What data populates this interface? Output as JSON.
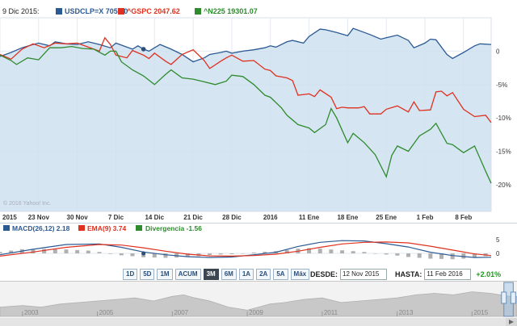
{
  "legend": {
    "date": "9 Dic 2015:",
    "series": [
      {
        "label": "USDCLP=X 705.60",
        "color": "#2b5a93"
      },
      {
        "label": "^GSPC 2047.62",
        "color": "#e0301e"
      },
      {
        "label": "^N225 19301.07",
        "color": "#2e8b2e"
      }
    ]
  },
  "watermark": "© 2016 Yahoo! Inc.",
  "chart_data": [
    {
      "type": "line",
      "title": "",
      "y_ticks": [
        "0",
        "-5%",
        "-10%",
        "-15%",
        "-20%"
      ],
      "ylim": [
        -24,
        5
      ],
      "x_ticks": [
        "2015",
        "23 Nov",
        "30 Nov",
        "7 Dic",
        "14 Dic",
        "21 Dic",
        "28 Dic",
        "2016",
        "11 Ene",
        "18 Ene",
        "25 Ene",
        "1 Feb",
        "8 Feb"
      ],
      "x_tick_pos": [
        0,
        7,
        14,
        21,
        28,
        35,
        42,
        49,
        56,
        63,
        70,
        77,
        84
      ],
      "x_range": [
        0,
        89
      ],
      "marker": {
        "series": 0,
        "x": 26,
        "y": 0.3
      },
      "series": [
        {
          "name": "USDCLP=X",
          "color": "#2b5a93",
          "fill": "#cfe0f0",
          "x": [
            0,
            2,
            4,
            6,
            7,
            9,
            10,
            12,
            14,
            16,
            18,
            20,
            21,
            23,
            24,
            25,
            26,
            27,
            28,
            29,
            31,
            33,
            35,
            37,
            38,
            40,
            41,
            42,
            44,
            46,
            48,
            49,
            50,
            52,
            53,
            55,
            56,
            58,
            59,
            61,
            63,
            64,
            66,
            67,
            69,
            70,
            72,
            74,
            75,
            77,
            78,
            79,
            81,
            82,
            84,
            86,
            87,
            89
          ],
          "y": [
            -0.8,
            -0.2,
            0.5,
            1,
            1.2,
            0.8,
            1.4,
            1.1,
            1,
            1.4,
            1,
            0.5,
            1.2,
            0.6,
            0.3,
            0.8,
            0.3,
            0,
            0.5,
            1,
            0.3,
            -0.5,
            -1.6,
            -1,
            -0.5,
            -0.2,
            0,
            -0.3,
            0,
            0.2,
            0.5,
            0.8,
            0.6,
            1.4,
            1.6,
            1.2,
            2.2,
            3.3,
            3.2,
            2.8,
            2.3,
            3.4,
            2.8,
            2.5,
            1.8,
            2,
            2.4,
            1.6,
            0.5,
            1.2,
            1.8,
            1.7,
            -0.5,
            -1.1,
            -0.2,
            0.8,
            1.1,
            1
          ]
        },
        {
          "name": "^GSPC",
          "color": "#e0301e",
          "x": [
            0,
            2,
            4,
            6,
            8,
            10,
            12,
            14,
            16,
            18,
            19,
            20,
            21,
            23,
            24,
            26,
            27,
            28,
            30,
            31,
            33,
            35,
            37,
            38,
            40,
            41,
            42,
            44,
            46,
            48,
            49,
            50,
            52,
            53,
            54,
            56,
            57,
            58,
            60,
            61,
            62,
            63,
            65,
            66,
            67,
            69,
            70,
            72,
            74,
            75,
            76,
            78,
            79,
            80,
            81,
            82,
            84,
            86,
            88,
            89
          ],
          "y": [
            -0.5,
            -1.2,
            0.3,
            1.1,
            0.5,
            1.2,
            1.1,
            1.2,
            0.6,
            0,
            2,
            1,
            -0.6,
            -1,
            0.1,
            -0.6,
            -1.1,
            -0.3,
            -1.5,
            -2,
            -0.5,
            0.2,
            -1.4,
            -2.6,
            -1.5,
            -1,
            -0.6,
            -1.5,
            -1.4,
            -2.7,
            -2.9,
            -3.7,
            -4,
            -4.4,
            -6.6,
            -6.4,
            -6.8,
            -5.8,
            -6.9,
            -8.6,
            -8.4,
            -8.5,
            -8.5,
            -8.3,
            -9.4,
            -9.4,
            -8.7,
            -8.2,
            -9.1,
            -7.6,
            -8.9,
            -8.8,
            -6.1,
            -6,
            -6.7,
            -6.2,
            -8.7,
            -9.8,
            -9.6,
            -10.7
          ]
        },
        {
          "name": "^N225",
          "color": "#2e8b2e",
          "x": [
            0,
            2,
            3,
            5,
            7,
            9,
            11,
            13,
            15,
            17,
            19,
            20,
            21,
            22,
            24,
            26,
            28,
            30,
            31,
            33,
            35,
            37,
            39,
            41,
            42,
            44,
            46,
            48,
            49,
            51,
            52,
            54,
            56,
            57,
            59,
            60,
            61,
            63,
            64,
            66,
            68,
            70,
            71,
            72,
            74,
            76,
            78,
            79,
            81,
            82,
            84,
            86,
            88,
            89
          ],
          "y": [
            -0.6,
            -1.4,
            -2,
            -1,
            -1.3,
            0.5,
            0.5,
            0.7,
            0.4,
            0.3,
            -0.6,
            0,
            0,
            -1.6,
            -2.8,
            -3.7,
            -5,
            -3.5,
            -2.8,
            -4,
            -4.2,
            -4.6,
            -5,
            -4.5,
            -3.6,
            -3.8,
            -5,
            -6.6,
            -6.9,
            -8.5,
            -9.6,
            -11,
            -11.5,
            -12.2,
            -11,
            -8.6,
            -10,
            -13.7,
            -12.3,
            -13.7,
            -15.5,
            -18.8,
            -15.6,
            -14.2,
            -15,
            -12.7,
            -11.7,
            -10.8,
            -13.8,
            -14,
            -15.2,
            -14.2,
            -18,
            -19.8
          ]
        }
      ]
    },
    {
      "type": "line",
      "title": "",
      "legend": [
        "MACD(26,12) 2.18",
        "EMA(9) 3.74",
        "Divergencia -1.56"
      ],
      "y_ticks": [
        "5",
        "0"
      ],
      "ylim": [
        -3.5,
        7
      ],
      "x_range": [
        0,
        89
      ],
      "marker": {
        "series": 0,
        "x": 26,
        "y": 0
      },
      "series": [
        {
          "name": "MACD(26,12)",
          "color": "#2b5a93",
          "x": [
            0,
            6,
            12,
            18,
            22,
            26,
            30,
            34,
            38,
            42,
            46,
            50,
            54,
            58,
            62,
            66,
            70,
            74,
            78,
            82,
            86,
            89
          ],
          "y": [
            -0.5,
            1.5,
            3.2,
            3.4,
            2.2,
            0.5,
            -0.5,
            -1.2,
            -1.5,
            -1.3,
            -0.5,
            0.4,
            2.5,
            4,
            4.6,
            4.5,
            3.5,
            2.3,
            0.4,
            -0.8,
            -1.5,
            -1.4
          ]
        },
        {
          "name": "EMA(9)",
          "color": "#e0301e",
          "x": [
            0,
            6,
            12,
            18,
            22,
            26,
            30,
            34,
            38,
            42,
            46,
            50,
            54,
            58,
            62,
            66,
            70,
            74,
            78,
            82,
            86,
            89
          ],
          "y": [
            -1,
            0.5,
            2.2,
            3.2,
            3,
            2,
            0.8,
            -0.3,
            -0.9,
            -1,
            -0.8,
            -0.3,
            0.8,
            2.2,
            3.4,
            4,
            4.1,
            3.8,
            2.6,
            1.2,
            -0.2,
            -0.8
          ]
        },
        {
          "name": "Divergencia",
          "color": "#b0b0b0",
          "x": [
            0,
            2,
            4,
            6,
            8,
            10,
            12,
            14,
            16,
            18,
            20,
            22,
            24,
            26,
            28,
            30,
            32,
            34,
            36,
            38,
            40,
            42,
            44,
            46,
            48,
            50,
            52,
            54,
            56,
            58,
            60,
            62,
            64,
            66,
            68,
            70,
            72,
            74,
            76,
            78,
            80,
            82,
            84,
            86,
            88
          ],
          "y": [
            0.5,
            1,
            1.5,
            1.3,
            1.6,
            1.5,
            1.4,
            1.2,
            1,
            0.5,
            -0.2,
            -0.7,
            -1,
            -1.4,
            -1.5,
            -1.6,
            -1.5,
            -1.2,
            -1,
            -0.6,
            -0.4,
            -0.3,
            0,
            0.3,
            0.6,
            0.8,
            1.2,
            1.7,
            1.9,
            1.7,
            1.4,
            1.1,
            0.8,
            0.5,
            0,
            -0.4,
            -0.8,
            -1.3,
            -1.6,
            -1.9,
            -2,
            -2.1,
            -1.9,
            -1.5,
            -1
          ]
        }
      ]
    },
    {
      "type": "area",
      "title": "",
      "x_ticks": [
        "2003",
        "2005",
        "2007",
        "2009",
        "2011",
        "2013",
        "2015"
      ],
      "x_range": [
        2002.4,
        2016.2
      ],
      "ylim": [
        0,
        10
      ],
      "series": [
        {
          "name": "",
          "color": "#c8c8c8",
          "x": [
            2002.4,
            2003,
            2003.5,
            2004,
            2004.5,
            2005,
            2005.5,
            2006,
            2006.5,
            2007,
            2007.3,
            2007.6,
            2008,
            2008.5,
            2009,
            2009.3,
            2009.6,
            2010,
            2010.5,
            2011,
            2011.5,
            2012,
            2012.5,
            2013,
            2013.5,
            2014,
            2014.5,
            2015,
            2015.5,
            2016,
            2016.2
          ],
          "y": [
            3,
            3.5,
            3,
            4,
            4.5,
            5,
            5.5,
            6,
            5,
            6.5,
            7,
            6,
            5,
            3,
            2,
            3,
            4,
            4.5,
            5.5,
            6,
            4.5,
            5,
            5.5,
            6,
            7,
            7.5,
            7,
            8,
            7.5,
            6.5,
            6.5
          ]
        }
      ],
      "selection": [
        2015.85,
        2016.1
      ]
    }
  ],
  "macd_legend": [
    {
      "label": "MACD(26,12) 2.18",
      "color": "#2b5a93"
    },
    {
      "label": "EMA(9) 3.74",
      "color": "#e0301e"
    },
    {
      "label": "Divergencia -1.56",
      "color": "#2e8b2e"
    }
  ],
  "controls": {
    "ranges": [
      "1D",
      "5D",
      "1M",
      "ACUM",
      "3M",
      "6M",
      "1A",
      "2A",
      "5A",
      "Máx"
    ],
    "active": "3M",
    "desde_label": "DESDE:",
    "desde_value": "12 Nov 2015",
    "hasta_label": "HASTA:",
    "hasta_value": "11 Feb 2016",
    "change": "+2.01%"
  }
}
